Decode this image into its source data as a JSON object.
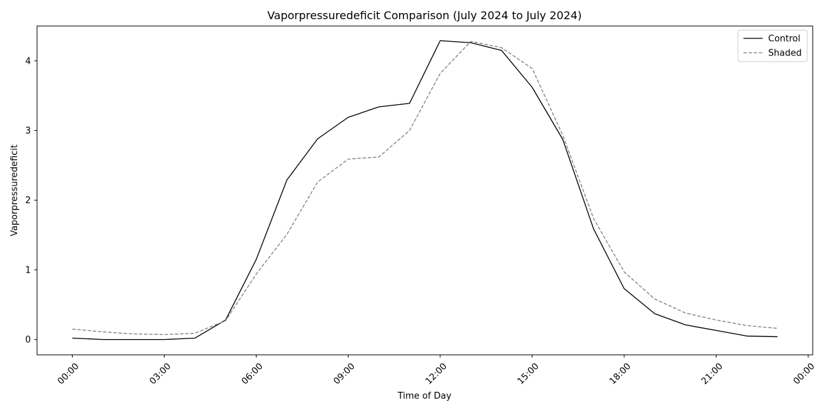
{
  "chart_data": {
    "type": "line",
    "title": "Vaporpressuredeficit Comparison (July 2024 to July 2024)",
    "xlabel": "Time of Day",
    "ylabel": "Vaporpressuredeficit",
    "x": [
      "00:00",
      "01:00",
      "02:00",
      "03:00",
      "04:00",
      "05:00",
      "06:00",
      "07:00",
      "08:00",
      "09:00",
      "10:00",
      "11:00",
      "12:00",
      "13:00",
      "14:00",
      "15:00",
      "16:00",
      "17:00",
      "18:00",
      "19:00",
      "20:00",
      "21:00",
      "22:00",
      "23:00"
    ],
    "x_ticks": [
      "00:00",
      "03:00",
      "06:00",
      "09:00",
      "12:00",
      "15:00",
      "18:00",
      "21:00",
      "00:00"
    ],
    "y_ticks": [
      "0",
      "1",
      "2",
      "3",
      "4"
    ],
    "ylim": [
      -0.22,
      4.5
    ],
    "grid": false,
    "legend_position": "top-right",
    "series": [
      {
        "name": "Control",
        "color": "#000000",
        "style": "solid",
        "values": [
          0.02,
          0.0,
          0.0,
          0.0,
          0.02,
          0.28,
          1.15,
          2.29,
          2.88,
          3.19,
          3.34,
          3.39,
          4.29,
          4.26,
          4.15,
          3.62,
          2.87,
          1.59,
          0.73,
          0.37,
          0.21,
          0.13,
          0.05,
          0.04
        ]
      },
      {
        "name": "Shaded",
        "color": "#808080",
        "style": "dashed",
        "values": [
          0.15,
          0.11,
          0.08,
          0.07,
          0.09,
          0.27,
          0.94,
          1.51,
          2.26,
          2.59,
          2.62,
          3.0,
          3.82,
          4.28,
          4.19,
          3.89,
          2.93,
          1.74,
          0.97,
          0.58,
          0.38,
          0.28,
          0.2,
          0.16
        ]
      }
    ]
  }
}
